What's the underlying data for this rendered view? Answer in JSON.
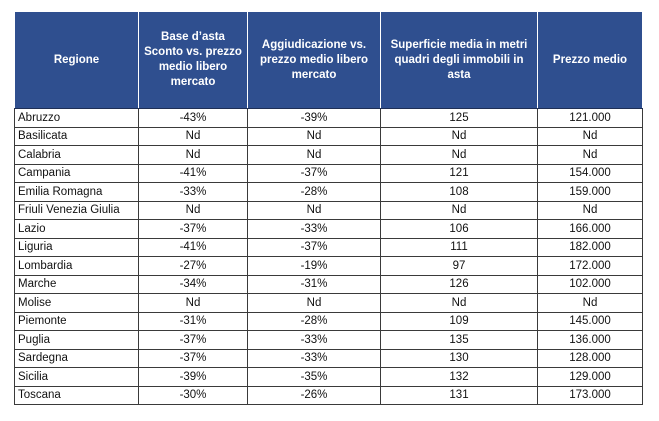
{
  "table": {
    "headers": [
      "Regione",
      "Base d’asta Sconto vs. prezzo medio libero mercato",
      "Aggiudicazione vs. prezzo medio libero mercato",
      "Superficie media in metri quadri degli immobili in asta",
      "Prezzo medio"
    ],
    "rows": [
      [
        "Abruzzo",
        "-43%",
        "-39%",
        "125",
        "121.000"
      ],
      [
        "Basilicata",
        "Nd",
        "Nd",
        "Nd",
        "Nd"
      ],
      [
        "Calabria",
        "Nd",
        "Nd",
        "Nd",
        "Nd"
      ],
      [
        "Campania",
        "-41%",
        "-37%",
        "121",
        "154.000"
      ],
      [
        "Emilia Romagna",
        "-33%",
        "-28%",
        "108",
        "159.000"
      ],
      [
        "Friuli Venezia Giulia",
        "Nd",
        "Nd",
        "Nd",
        "Nd"
      ],
      [
        "Lazio",
        "-37%",
        "-33%",
        "106",
        "166.000"
      ],
      [
        "Liguria",
        "-41%",
        "-37%",
        "111",
        "182.000"
      ],
      [
        "Lombardia",
        "-27%",
        "-19%",
        "97",
        "172.000"
      ],
      [
        "Marche",
        "-34%",
        "-31%",
        "126",
        "102.000"
      ],
      [
        "Molise",
        "Nd",
        "Nd",
        "Nd",
        "Nd"
      ],
      [
        "Piemonte",
        "-31%",
        "-28%",
        "109",
        "145.000"
      ],
      [
        "Puglia",
        "-37%",
        "-33%",
        "135",
        "136.000"
      ],
      [
        "Sardegna",
        "-37%",
        "-33%",
        "130",
        "128.000"
      ],
      [
        "Sicilia",
        "-39%",
        "-35%",
        "132",
        "129.000"
      ],
      [
        "Toscana",
        "-30%",
        "-26%",
        "131",
        "173.000"
      ]
    ]
  },
  "colors": {
    "header_bg": "#2f4f8f",
    "header_text": "#ffffff",
    "grid": "#3a3a3a"
  }
}
